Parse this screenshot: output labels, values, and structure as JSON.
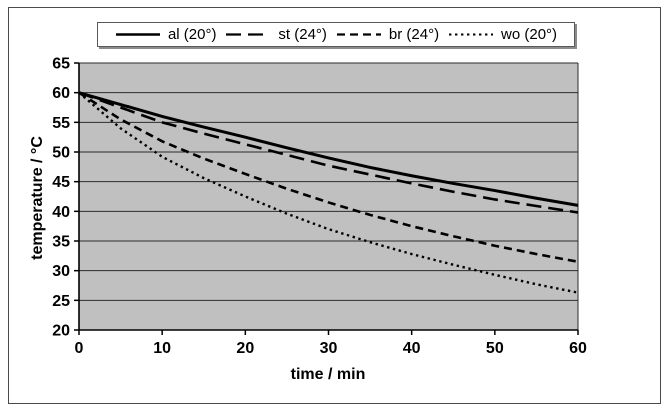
{
  "chart_data": {
    "type": "line",
    "xlabel": "time / min",
    "ylabel": "temperature / °C",
    "xlim": [
      0,
      60
    ],
    "ylim": [
      20,
      65
    ],
    "x_ticks": [
      0,
      10,
      20,
      30,
      40,
      50,
      60
    ],
    "y_ticks": [
      20,
      25,
      30,
      35,
      40,
      45,
      50,
      55,
      60,
      65
    ],
    "grid": "horizontal-only",
    "legend_position": "top",
    "plot_bg_color": "#c0c0c0",
    "line_color": "#000000",
    "gridline_color": "#2b2b2b",
    "x": [
      0,
      5,
      10,
      15,
      20,
      25,
      30,
      35,
      40,
      45,
      50,
      55,
      60
    ],
    "series": [
      {
        "name": "al (20°)",
        "style": "solid",
        "values": [
          60,
          58,
          56,
          54.2,
          52.5,
          50.7,
          49,
          47.4,
          46,
          44.7,
          43.5,
          42.2,
          41
        ]
      },
      {
        "name": "st (24°)",
        "style": "long-dash",
        "values": [
          60,
          57.5,
          55,
          53.1,
          51.3,
          49.5,
          47.7,
          46.2,
          44.7,
          43.3,
          42,
          40.9,
          39.8
        ]
      },
      {
        "name": "br (24°)",
        "style": "short-dash",
        "values": [
          60,
          55.5,
          51.8,
          48.9,
          46.3,
          43.8,
          41.5,
          39.4,
          37.5,
          35.8,
          34.2,
          32.8,
          31.5
        ]
      },
      {
        "name": "wo (20°)",
        "style": "dotted",
        "values": [
          60,
          54,
          49.2,
          45.6,
          42.5,
          39.6,
          37,
          34.8,
          32.8,
          31,
          29.3,
          27.7,
          26.3
        ]
      }
    ]
  }
}
